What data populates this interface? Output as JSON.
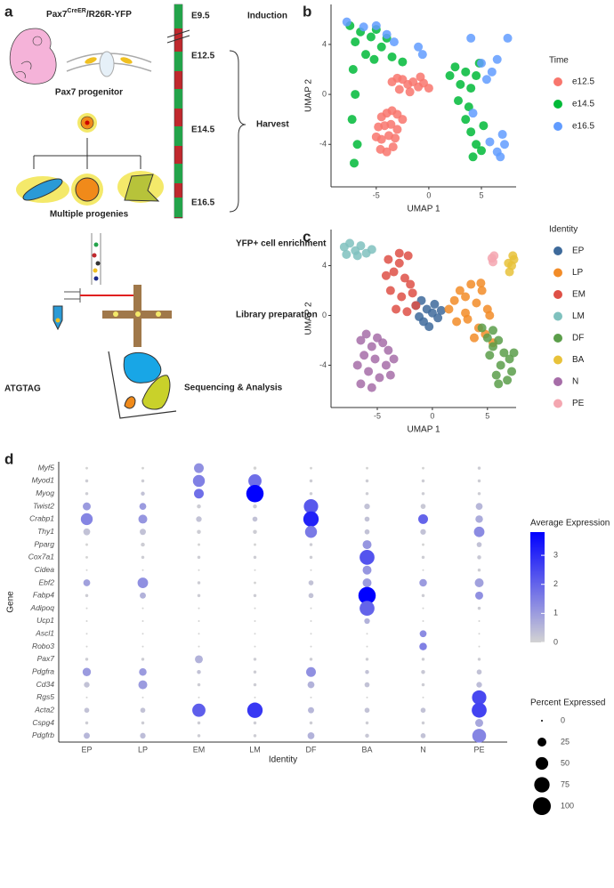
{
  "panel_a": {
    "panel": "a",
    "title": [
      "Pax7",
      "CreER",
      "/R26R-YFP"
    ],
    "progenitor": "Pax7 progenitor",
    "progenies": "Multiple progenies",
    "stages": [
      "E9.5",
      "E12.5",
      "E14.5",
      "E16.5"
    ],
    "induction": "Induction",
    "harvest": "Harvest",
    "steps": [
      "YFP+ cell enrichment",
      "Library preparation",
      "Sequencing & Analysis"
    ],
    "sequence": "ATGTAG"
  },
  "chart_data": [
    {
      "type": "scatter",
      "panel": "b",
      "x_label": "UMAP 1",
      "y_label": "UMAP 2",
      "legend_title": "Time",
      "xlim": [
        -9.3,
        8.3
      ],
      "ylim": [
        -7.4,
        7.2
      ],
      "xticks": [
        -5,
        0,
        5
      ],
      "yticks": [
        -4,
        0,
        4
      ],
      "series": [
        {
          "name": "e12.5",
          "color": "#f8766d",
          "x": [
            -3.5,
            -3,
            -2.5,
            -2,
            -1.5,
            -1,
            -0.5,
            0,
            -2.8,
            -1.8,
            -0.8,
            -4.5,
            -4,
            -3.5,
            -3,
            -2.5,
            -4.8,
            -4.2,
            -3.6,
            -3,
            -5,
            -4.5,
            -3.8,
            -3.2,
            -4.6,
            -4,
            -3.4
          ],
          "y": [
            1,
            1.3,
            1.2,
            0.8,
            1,
            0.6,
            0.9,
            0.5,
            0.4,
            0.2,
            1.4,
            -1.8,
            -1.5,
            -1.3,
            -1.6,
            -2,
            -2.6,
            -2.5,
            -2.4,
            -2.8,
            -3.4,
            -3.6,
            -3.3,
            -3.5,
            -4.4,
            -4.6,
            -4.2
          ]
        },
        {
          "name": "e14.5",
          "color": "#00ba38",
          "x": [
            -7.5,
            -7,
            -6.5,
            -5.5,
            -5,
            -4.5,
            -4,
            -6,
            -5.2,
            -7.2,
            -7,
            -7.3,
            -6.8,
            -7.1,
            2,
            2.5,
            3,
            3.5,
            4,
            4.5,
            2.8,
            3.8,
            4.8,
            3.5,
            4,
            4.5,
            5,
            4.2,
            5.2,
            -3.5,
            -2.5
          ],
          "y": [
            5.5,
            4.2,
            5,
            4.6,
            5.2,
            3.8,
            4.5,
            3.2,
            2.8,
            2,
            0,
            -2,
            -4,
            -5.5,
            1.5,
            2.2,
            0.8,
            1.8,
            0.5,
            1.5,
            -0.5,
            -1,
            2.5,
            -2,
            -3,
            -4,
            -4.5,
            -5,
            -2.5,
            3,
            2.6
          ]
        },
        {
          "name": "e16.5",
          "color": "#619cff",
          "x": [
            -7.8,
            -6.2,
            -5,
            -4,
            -3.3,
            -1,
            -0.6,
            4,
            5,
            6,
            6.5,
            5.5,
            7,
            7.2,
            6.5,
            7.5,
            6.8,
            4.2,
            5.8
          ],
          "y": [
            5.8,
            5.4,
            5.5,
            4.8,
            4.2,
            3.8,
            3.2,
            4.5,
            2.5,
            1.8,
            2.8,
            1.2,
            -3.2,
            -4,
            -4.6,
            4.5,
            -5,
            -1.5,
            -3.8
          ]
        }
      ]
    },
    {
      "type": "scatter",
      "panel": "c",
      "x_label": "UMAP 1",
      "y_label": "UMAP 2",
      "legend_title": "Identity",
      "xlim": [
        -9.2,
        7.6
      ],
      "ylim": [
        -7.4,
        6.9
      ],
      "xticks": [
        -5,
        0,
        5
      ],
      "yticks": [
        -4,
        0,
        4
      ],
      "series": [
        {
          "name": "EP",
          "color": "#3e6a9b",
          "x": [
            -1.5,
            -1,
            -0.5,
            0,
            0.5,
            -0.8,
            0.2,
            -1.2,
            0.8,
            -0.3
          ],
          "y": [
            0.8,
            1.2,
            0.5,
            0.2,
            -0.2,
            -0.5,
            0.9,
            -0.1,
            0.4,
            -0.9
          ]
        },
        {
          "name": "LP",
          "color": "#f28c28",
          "x": [
            1.5,
            2,
            2.5,
            3,
            3.5,
            4,
            4.5,
            5,
            2.2,
            3.2,
            4.2,
            5.2,
            3.8,
            4.8,
            5.5,
            3,
            4.4
          ],
          "y": [
            0.5,
            1.2,
            2,
            1.5,
            2.5,
            1,
            2,
            0.5,
            -0.5,
            -0.3,
            -1,
            0,
            -1.8,
            -1.5,
            -2.2,
            0.2,
            2.6
          ]
        },
        {
          "name": "EM",
          "color": "#de5046",
          "x": [
            -4,
            -3.5,
            -3,
            -2.5,
            -2,
            -3.8,
            -2.8,
            -1.8,
            -3.3,
            -2.3,
            -1.5,
            -3,
            -2.2,
            -4.2
          ],
          "y": [
            4.5,
            3.5,
            4.2,
            3,
            2.5,
            2,
            1.5,
            1.8,
            0.5,
            0.3,
            0.8,
            5,
            4.8,
            3.2
          ]
        },
        {
          "name": "LM",
          "color": "#7fc1be",
          "x": [
            -8,
            -7.5,
            -7,
            -6.5,
            -6,
            -5.5,
            -7.8,
            -6.8
          ],
          "y": [
            5.5,
            5.8,
            5.2,
            5.6,
            5,
            5.3,
            4.9,
            4.8
          ]
        },
        {
          "name": "DF",
          "color": "#5b9e4a",
          "x": [
            4.5,
            5,
            5.5,
            6,
            6.5,
            7,
            5.2,
            6.2,
            7.2,
            5.8,
            6.8,
            6,
            7.4,
            5.5
          ],
          "y": [
            -1,
            -1.8,
            -2.5,
            -2,
            -3,
            -3.5,
            -3.2,
            -4,
            -4.5,
            -4.8,
            -5.2,
            -5.5,
            -3,
            -1.2
          ]
        },
        {
          "name": "BA",
          "color": "#e8c23a",
          "x": [
            7,
            7.2,
            7.4,
            6.9,
            7.3
          ],
          "y": [
            3.5,
            4,
            4.5,
            4.2,
            4.8
          ]
        },
        {
          "name": "N",
          "color": "#a66da8",
          "x": [
            -6.5,
            -6,
            -5.5,
            -5,
            -4.5,
            -4,
            -3.5,
            -6.2,
            -5.2,
            -4.2,
            -3.8,
            -6.8,
            -5.8,
            -4.8,
            -6.5,
            -5.5
          ],
          "y": [
            -2,
            -1.5,
            -2.5,
            -1.8,
            -2.2,
            -2.8,
            -3.5,
            -3.2,
            -3.5,
            -4,
            -4.8,
            -4,
            -4.5,
            -5,
            -5.5,
            -5.8
          ]
        },
        {
          "name": "PE",
          "color": "#f4a6b0",
          "x": [
            5.4,
            5.6,
            5.5
          ],
          "y": [
            4.6,
            4.8,
            4.3
          ]
        }
      ]
    },
    {
      "type": "dot",
      "panel": "d",
      "x_label": "Identity",
      "y_label": "Gene",
      "categories": [
        "EP",
        "LP",
        "EM",
        "LM",
        "DF",
        "BA",
        "N",
        "PE"
      ],
      "genes": [
        "Myf5",
        "Myod1",
        "Myog",
        "Twist2",
        "Crabp1",
        "Thy1",
        "Pparg",
        "Cox7a1",
        "Cidea",
        "Ebf2",
        "Fabp4",
        "Adipoq",
        "Ucp1",
        "Ascl1",
        "Robo3",
        "Pax7",
        "Pdgfra",
        "Cd34",
        "Rgs5",
        "Acta2",
        "Cspg4",
        "Pdgfrb"
      ],
      "color_title": "Average Expression",
      "colors": [
        "#d3d3d3",
        "#0000ff"
      ],
      "colorlim": [
        0,
        3.8
      ],
      "colorticks": [
        0,
        1,
        2,
        3
      ],
      "size_title": "Percent Expressed",
      "size_ticks": [
        0,
        25,
        50,
        75,
        100
      ],
      "values": [
        [
          0,
          0,
          1.2,
          0,
          0,
          0,
          0,
          0.1
        ],
        [
          0.1,
          0.1,
          1.5,
          1.8,
          0.1,
          0.1,
          0.1,
          0.1
        ],
        [
          0.1,
          0.3,
          1.8,
          3.8,
          0.1,
          0.1,
          0.1,
          0.1
        ],
        [
          1,
          1,
          0.1,
          0.1,
          2.2,
          0.3,
          0.2,
          0.5
        ],
        [
          1.4,
          1.1,
          0.3,
          0.3,
          3.2,
          0.3,
          2,
          0.7
        ],
        [
          0.3,
          0.3,
          0.1,
          0.1,
          1.6,
          0.3,
          0.3,
          1.3
        ],
        [
          0,
          0.1,
          0,
          0,
          0.1,
          1.1,
          0,
          0.3
        ],
        [
          0,
          0.1,
          0.1,
          0.1,
          0.1,
          2.3,
          0.1,
          0.2
        ],
        [
          0,
          0,
          0,
          0,
          0,
          1.1,
          0,
          0.1
        ],
        [
          0.9,
          1.2,
          0.1,
          0,
          0.3,
          1,
          1,
          0.9
        ],
        [
          0.1,
          0.6,
          0.1,
          0.1,
          0.3,
          3.8,
          0.1,
          1.2
        ],
        [
          0,
          0,
          0,
          0,
          0,
          2,
          0,
          0.1
        ],
        [
          0,
          0,
          0,
          0,
          0,
          0.6,
          0,
          0
        ],
        [
          0,
          0,
          0,
          0,
          0,
          0,
          1.3,
          0
        ],
        [
          0,
          0,
          0,
          0,
          0,
          0,
          1.5,
          0
        ],
        [
          0.1,
          0.1,
          0.6,
          0.1,
          0.1,
          0.1,
          0.1,
          0.1
        ],
        [
          1,
          1,
          0.3,
          0.1,
          1.2,
          0.3,
          0.2,
          0.3
        ],
        [
          0.3,
          1,
          0.1,
          0.1,
          0.6,
          0.3,
          0.1,
          0.4
        ],
        [
          0,
          0,
          0,
          0,
          0,
          0,
          0,
          2.5
        ],
        [
          0.3,
          0.3,
          2.1,
          2.8,
          0.5,
          0.3,
          0.3,
          2.6
        ],
        [
          0.1,
          0.1,
          0.1,
          0.1,
          0.1,
          0.1,
          0.1,
          0.8
        ],
        [
          0.5,
          0.4,
          0.1,
          0.1,
          0.6,
          0.2,
          0.3,
          1.4
        ]
      ],
      "sizes": [
        [
          2,
          2,
          30,
          3,
          2,
          2,
          2,
          3
        ],
        [
          3,
          3,
          45,
          55,
          3,
          3,
          3,
          3
        ],
        [
          3,
          5,
          30,
          95,
          3,
          3,
          3,
          3
        ],
        [
          20,
          15,
          5,
          5,
          65,
          10,
          8,
          15
        ],
        [
          45,
          25,
          10,
          8,
          75,
          8,
          30,
          18
        ],
        [
          15,
          12,
          5,
          5,
          45,
          8,
          10,
          35
        ],
        [
          2,
          5,
          2,
          2,
          3,
          25,
          2,
          8
        ],
        [
          2,
          3,
          3,
          3,
          3,
          70,
          3,
          5
        ],
        [
          1,
          1,
          1,
          1,
          1,
          25,
          1,
          3
        ],
        [
          15,
          35,
          3,
          2,
          8,
          25,
          18,
          25
        ],
        [
          3,
          12,
          3,
          3,
          8,
          95,
          3,
          20
        ],
        [
          1,
          1,
          1,
          1,
          1,
          70,
          1,
          3
        ],
        [
          1,
          1,
          1,
          1,
          1,
          10,
          1,
          1
        ],
        [
          1,
          1,
          1,
          1,
          1,
          1,
          15,
          1
        ],
        [
          1,
          1,
          1,
          1,
          1,
          1,
          18,
          1
        ],
        [
          3,
          3,
          20,
          3,
          3,
          3,
          3,
          3
        ],
        [
          22,
          18,
          5,
          3,
          30,
          5,
          5,
          8
        ],
        [
          10,
          25,
          3,
          3,
          15,
          8,
          3,
          10
        ],
        [
          1,
          1,
          1,
          1,
          1,
          1,
          1,
          65
        ],
        [
          8,
          8,
          55,
          75,
          12,
          8,
          8,
          70
        ],
        [
          3,
          3,
          3,
          3,
          3,
          3,
          3,
          20
        ],
        [
          12,
          10,
          3,
          3,
          15,
          5,
          8,
          60
        ]
      ]
    }
  ]
}
